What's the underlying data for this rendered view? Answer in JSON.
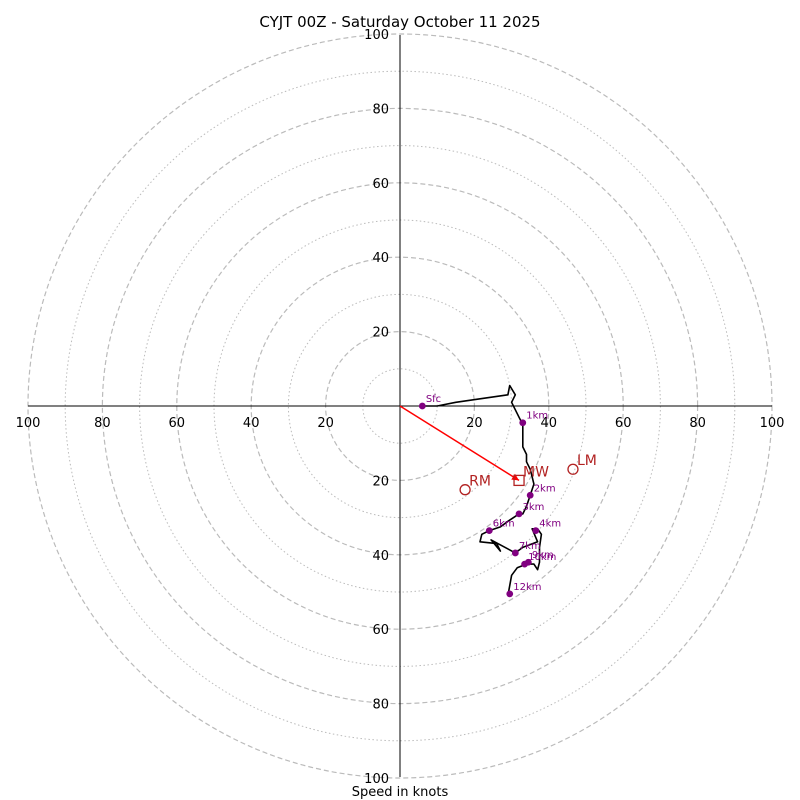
{
  "chart_data": {
    "type": "hodograph",
    "title": "CYJT 00Z - Saturday October 11 2025",
    "xlabel": "Speed in knots",
    "ring_max": 100,
    "major_rings": [
      20,
      40,
      60,
      80,
      100
    ],
    "minor_rings": [
      10,
      30,
      50,
      70,
      90
    ],
    "x_tick_labels": [
      "100",
      "80",
      "60",
      "40",
      "20",
      "20",
      "40",
      "60",
      "80",
      "100"
    ],
    "x_tick_values": [
      -100,
      -80,
      -60,
      -40,
      -20,
      20,
      40,
      60,
      80,
      100
    ],
    "y_tick_labels_top": [
      "20",
      "40",
      "60",
      "80",
      "100"
    ],
    "y_tick_values_top": [
      20,
      40,
      60,
      80,
      100
    ],
    "y_tick_labels_bottom": [
      "20",
      "40",
      "60",
      "80",
      "100"
    ],
    "y_tick_values_bottom": [
      -20,
      -40,
      -60,
      -80,
      -100
    ],
    "colors": {
      "trace": "#000000",
      "height_marker": "#800080",
      "motion": "#b22222",
      "shear_arrow": "#ff0000",
      "grid": "#bbbbbb",
      "axis": "#000000"
    },
    "trace": [
      [
        5.5,
        0
      ],
      [
        10,
        0
      ],
      [
        15,
        1
      ],
      [
        22,
        2
      ],
      [
        29,
        3
      ],
      [
        29.5,
        5.5
      ],
      [
        31,
        3
      ],
      [
        30,
        1
      ],
      [
        32,
        -3
      ],
      [
        33,
        -5
      ],
      [
        33,
        -10
      ],
      [
        33,
        -11
      ],
      [
        34,
        -13
      ],
      [
        34,
        -15
      ],
      [
        35,
        -17
      ],
      [
        35.5,
        -19
      ],
      [
        36,
        -21
      ],
      [
        35,
        -24
      ],
      [
        34,
        -27
      ],
      [
        33,
        -29
      ],
      [
        32,
        -29
      ],
      [
        29,
        -31
      ],
      [
        27,
        -32.5
      ],
      [
        24,
        -33.5
      ],
      [
        22,
        -34.5
      ],
      [
        21.5,
        -36.5
      ],
      [
        26,
        -37
      ],
      [
        27,
        -39
      ],
      [
        24.5,
        -36
      ],
      [
        31,
        -39.5
      ],
      [
        33,
        -38
      ],
      [
        37,
        -36.5
      ],
      [
        35.5,
        -33
      ],
      [
        37,
        -33
      ],
      [
        38,
        -34.5
      ],
      [
        37.5,
        -38
      ],
      [
        37.5,
        -42
      ],
      [
        37,
        -44
      ],
      [
        36,
        -42.5
      ],
      [
        34,
        -42.5
      ],
      [
        31.5,
        -43.5
      ],
      [
        30,
        -45.5
      ],
      [
        29,
        -51
      ]
    ],
    "heights": [
      {
        "label": "Sfc",
        "u": 6,
        "v": 0
      },
      {
        "label": "1km",
        "u": 33,
        "v": -4.5
      },
      {
        "label": "2km",
        "u": 35,
        "v": -24
      },
      {
        "label": "3km",
        "u": 32,
        "v": -29
      },
      {
        "label": "4km",
        "u": 36.5,
        "v": -33.5
      },
      {
        "label": "6km",
        "u": 24,
        "v": -33.5
      },
      {
        "label": "7km",
        "u": 31,
        "v": -39.5
      },
      {
        "label": "9km",
        "u": 34.5,
        "v": -42
      },
      {
        "label": "10km",
        "u": 33.5,
        "v": -42.5
      },
      {
        "label": "12km",
        "u": 29.5,
        "v": -50.5
      }
    ],
    "storm_motions": [
      {
        "label": "RM",
        "u": 17.5,
        "v": -22.5,
        "marker": "circle"
      },
      {
        "label": "LM",
        "u": 46.5,
        "v": -17,
        "marker": "circle"
      },
      {
        "label": "MW",
        "u": 32,
        "v": -20,
        "marker": "square"
      }
    ],
    "shear_vector": {
      "from": [
        0,
        0
      ],
      "to": [
        32,
        -20
      ]
    }
  }
}
